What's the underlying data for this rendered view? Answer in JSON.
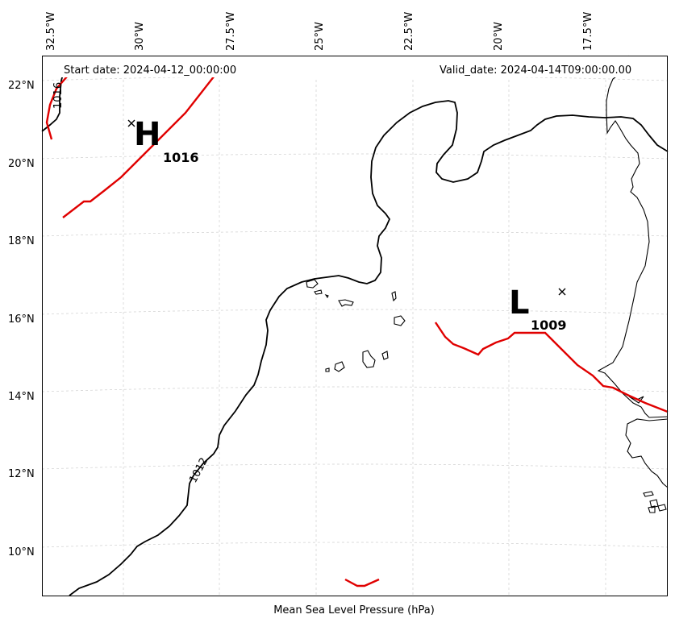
{
  "header": {
    "start_date": "Start date: 2024-04-12_00:00:00",
    "valid_date": "Valid_date: 2024-04-14T09:00:00.00"
  },
  "caption": "Mean Sea Level Pressure (hPa)",
  "axes": {
    "lon_ticks": [
      "32.5°W",
      "30°W",
      "27.5°W",
      "25°W",
      "22.5°W",
      "20°W",
      "17.5°W"
    ],
    "lat_ticks": [
      "22°N",
      "20°N",
      "18°N",
      "16°N",
      "14°N",
      "12°N",
      "10°N"
    ]
  },
  "pressure_systems": [
    {
      "letter": "H",
      "value": "1016"
    },
    {
      "letter": "L",
      "value": "1009"
    }
  ],
  "isobar_labels": [
    "1016",
    "1012"
  ],
  "colors": {
    "isobar": "#000000",
    "front": "#e00000",
    "grid": "#cfcfcf"
  }
}
